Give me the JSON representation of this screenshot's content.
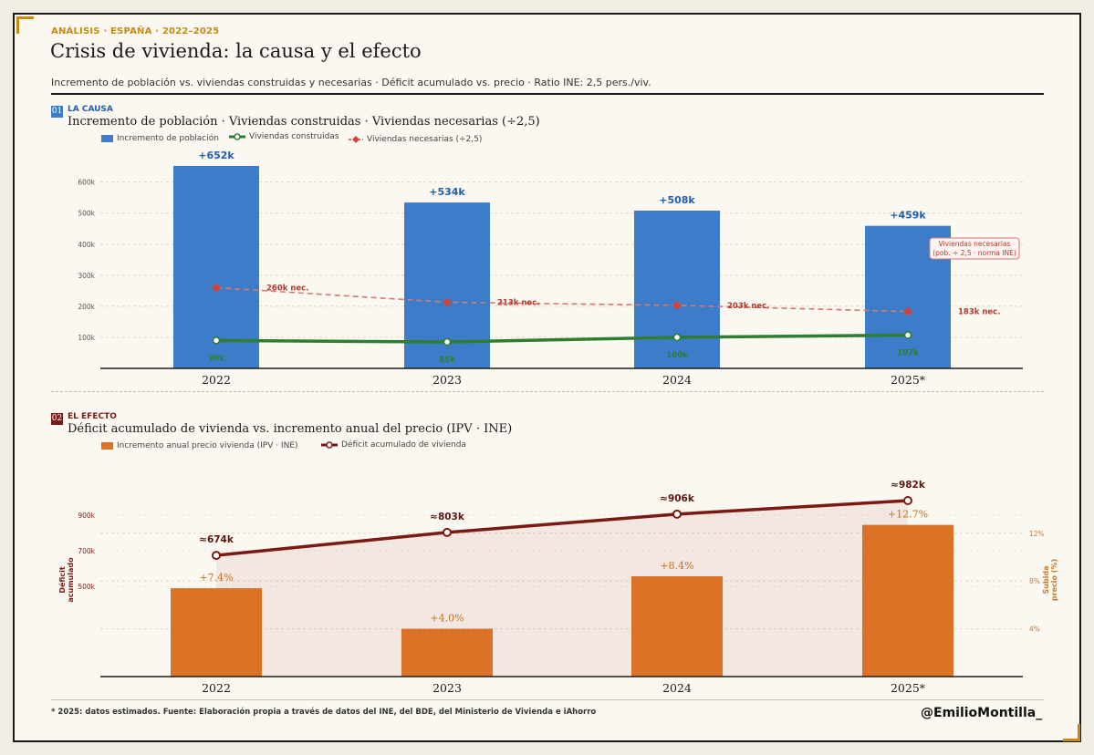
{
  "header": {
    "kicker": "ANÁLISIS · ESPAÑA · 2022–2025",
    "title": "Crisis de vivienda: la causa y el efecto",
    "subtitle": "Incremento de población vs. viviendas construidas y necesarias  ·  Déficit acumulado vs. precio  ·  Ratio INE: 2,5 pers./viv."
  },
  "colors": {
    "accent": "#c58a12",
    "population_bar": "#3d7cc9",
    "built_line": "#2e7d32",
    "needed_line": "#d0453a",
    "price_bar": "#dc7226",
    "deficit_line": "#7a1a14"
  },
  "section1": {
    "num": "01",
    "tag": "LA CAUSA",
    "title": "Incremento de población  ·  Viviendas construidas  ·  Viviendas necesarias (÷2,5)",
    "legend": [
      "Incremento de población",
      "Viviendas construidas",
      "Viviendas necesarias (÷2,5)"
    ]
  },
  "section2": {
    "num": "02",
    "tag": "EL EFECTO",
    "title": "Déficit acumulado de vivienda vs. incremento anual del precio (IPV · INE)",
    "legend": [
      "Incremento anual precio vivienda (IPV · INE)",
      "Déficit acumulado de vivienda"
    ]
  },
  "chart_data": [
    {
      "type": "bar",
      "categories": [
        "2022",
        "2023",
        "2024",
        "2025*"
      ],
      "ylim": [
        0,
        700000
      ],
      "y_ticks": [
        "100k",
        "200k",
        "300k",
        "400k",
        "500k",
        "600k"
      ],
      "grid": true,
      "series": [
        {
          "name": "Incremento de población",
          "kind": "bar",
          "values": [
            652000,
            534000,
            508000,
            459000
          ],
          "labels": [
            "+652k",
            "+534k",
            "+508k",
            "+459k"
          ]
        },
        {
          "name": "Viviendas construidas",
          "kind": "line",
          "values": [
            90000,
            85000,
            100000,
            107000
          ],
          "labels": [
            "90k",
            "85k",
            "100k",
            "107k"
          ]
        },
        {
          "name": "Viviendas necesarias (÷2,5)",
          "kind": "line-dashed",
          "values": [
            260000,
            213000,
            203000,
            183000
          ],
          "labels": [
            "260k nec.",
            "213k nec.",
            "203k nec.",
            "183k nec."
          ]
        }
      ],
      "annotation": [
        "Viviendas necesarias",
        "(pob. ÷ 2,5 · norma INE)"
      ]
    },
    {
      "type": "bar",
      "categories": [
        "2022",
        "2023",
        "2024",
        "2025*"
      ],
      "grid": true,
      "y_left_label": "Déficit acumulado",
      "y_left_ticks": [
        "500k",
        "700k",
        "900k"
      ],
      "y_right_label": "Subida precio (%)",
      "y_right_ticks": [
        "4%",
        "8%",
        "12%"
      ],
      "series": [
        {
          "name": "Incremento anual precio vivienda (IPV · INE)",
          "kind": "bar",
          "axis": "right",
          "values": [
            7.4,
            4.0,
            8.4,
            12.7
          ],
          "labels": [
            "+7.4%",
            "+4.0%",
            "+8.4%",
            "+12.7%"
          ]
        },
        {
          "name": "Déficit acumulado de vivienda",
          "kind": "line-area",
          "axis": "left",
          "values": [
            674000,
            803000,
            906000,
            982000
          ],
          "labels": [
            "≈674k",
            "≈803k",
            "≈906k",
            "≈982k"
          ]
        }
      ]
    }
  ],
  "footer": {
    "note": "* 2025: datos estimados.   Fuente: Elaboración propia a través de datos del INE, del BDE, del Ministerio de Vivienda e iAhorro",
    "handle": "@EmilioMontilla_"
  }
}
